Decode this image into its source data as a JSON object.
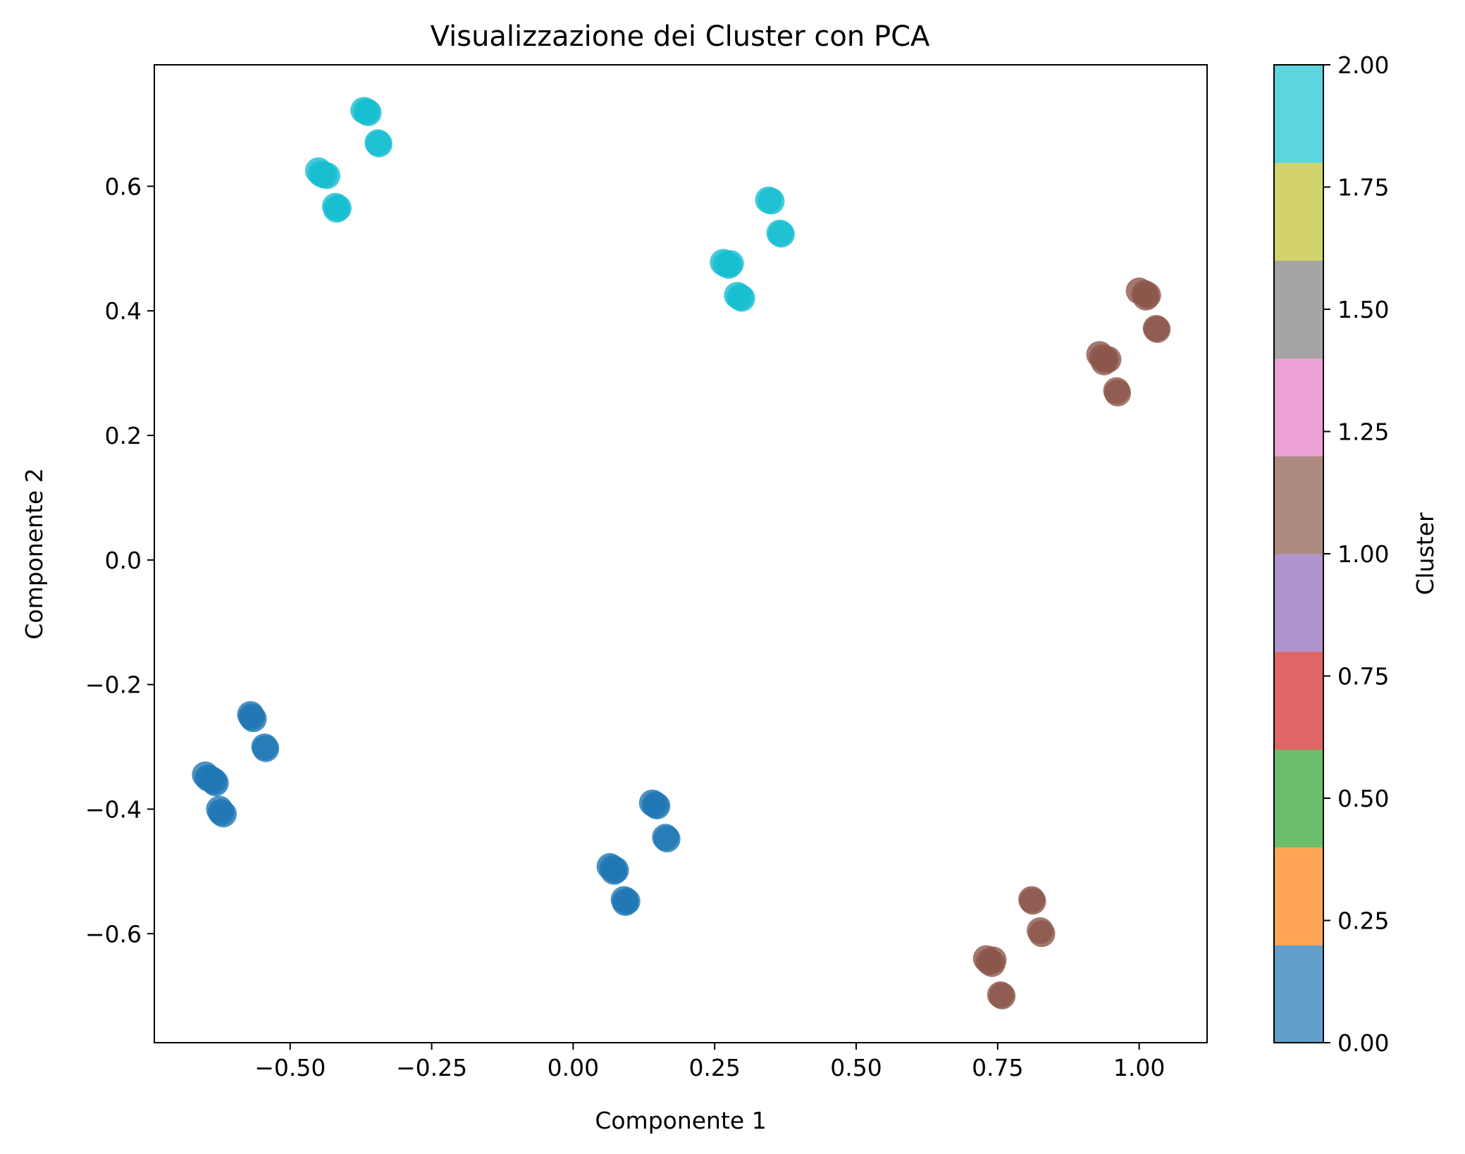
{
  "chart_data": {
    "type": "scatter",
    "title": "Visualizzazione dei Cluster con PCA",
    "xlabel": "Componente 1",
    "ylabel": "Componente 2",
    "xlim": [
      -0.74,
      1.12
    ],
    "ylim": [
      -0.775,
      0.795
    ],
    "xticks": [
      -0.5,
      -0.25,
      0.0,
      0.25,
      0.5,
      0.75,
      1.0
    ],
    "xtick_labels": [
      "−0.50",
      "−0.25",
      "0.00",
      "0.25",
      "0.50",
      "0.75",
      "1.00"
    ],
    "yticks": [
      -0.6,
      -0.4,
      -0.2,
      0.0,
      0.2,
      0.4,
      0.6
    ],
    "ytick_labels": [
      "−0.6",
      "−0.4",
      "−0.2",
      "0.0",
      "0.2",
      "0.4",
      "0.6"
    ],
    "grid": false,
    "series": [
      {
        "cluster": 0,
        "color": "#1f77b4",
        "points": [
          [
            -0.65,
            -0.345
          ],
          [
            -0.645,
            -0.35
          ],
          [
            -0.64,
            -0.352
          ],
          [
            -0.635,
            -0.355
          ],
          [
            -0.632,
            -0.358
          ],
          [
            -0.625,
            -0.4
          ],
          [
            -0.622,
            -0.405
          ],
          [
            -0.618,
            -0.408
          ],
          [
            -0.57,
            -0.248
          ],
          [
            -0.568,
            -0.252
          ],
          [
            -0.565,
            -0.255
          ],
          [
            -0.545,
            -0.3
          ],
          [
            -0.543,
            -0.303
          ],
          [
            0.065,
            -0.492
          ],
          [
            0.07,
            -0.495
          ],
          [
            0.075,
            -0.498
          ],
          [
            0.072,
            -0.5
          ],
          [
            0.09,
            -0.545
          ],
          [
            0.095,
            -0.548
          ],
          [
            0.092,
            -0.55
          ],
          [
            0.14,
            -0.39
          ],
          [
            0.145,
            -0.393
          ],
          [
            0.148,
            -0.395
          ],
          [
            0.163,
            -0.445
          ],
          [
            0.166,
            -0.448
          ]
        ]
      },
      {
        "cluster": 1,
        "color": "#8c564b",
        "points": [
          [
            1.0,
            0.432
          ],
          [
            1.01,
            0.428
          ],
          [
            1.015,
            0.425
          ],
          [
            1.012,
            0.422
          ],
          [
            1.03,
            0.372
          ],
          [
            1.032,
            0.37
          ],
          [
            0.93,
            0.33
          ],
          [
            0.935,
            0.325
          ],
          [
            0.94,
            0.322
          ],
          [
            0.945,
            0.322
          ],
          [
            0.938,
            0.318
          ],
          [
            0.96,
            0.272
          ],
          [
            0.962,
            0.268
          ],
          [
            0.81,
            -0.545
          ],
          [
            0.812,
            -0.548
          ],
          [
            0.825,
            -0.595
          ],
          [
            0.828,
            -0.6
          ],
          [
            0.73,
            -0.64
          ],
          [
            0.735,
            -0.645
          ],
          [
            0.74,
            -0.648
          ],
          [
            0.742,
            -0.642
          ],
          [
            0.755,
            -0.698
          ],
          [
            0.758,
            -0.7
          ]
        ]
      },
      {
        "cluster": 2,
        "color": "#17becf",
        "points": [
          [
            -0.37,
            0.722
          ],
          [
            -0.365,
            0.72
          ],
          [
            -0.362,
            0.718
          ],
          [
            -0.345,
            0.67
          ],
          [
            -0.343,
            0.668
          ],
          [
            -0.45,
            0.625
          ],
          [
            -0.445,
            0.62
          ],
          [
            -0.44,
            0.618
          ],
          [
            -0.435,
            0.617
          ],
          [
            -0.42,
            0.568
          ],
          [
            -0.415,
            0.565
          ],
          [
            -0.418,
            0.563
          ],
          [
            0.345,
            0.578
          ],
          [
            0.35,
            0.576
          ],
          [
            0.365,
            0.525
          ],
          [
            0.368,
            0.523
          ],
          [
            0.265,
            0.478
          ],
          [
            0.27,
            0.475
          ],
          [
            0.275,
            0.473
          ],
          [
            0.278,
            0.476
          ],
          [
            0.29,
            0.425
          ],
          [
            0.295,
            0.422
          ],
          [
            0.298,
            0.42
          ]
        ]
      }
    ],
    "colorbar": {
      "label": "Cluster",
      "range": [
        0.0,
        2.0
      ],
      "ticks": [
        0.0,
        0.25,
        0.5,
        0.75,
        1.0,
        1.25,
        1.5,
        1.75,
        2.0
      ],
      "tick_labels": [
        "0.00",
        "0.25",
        "0.50",
        "0.75",
        "1.00",
        "1.25",
        "1.50",
        "1.75",
        "2.00"
      ],
      "colors": [
        "#62a0cb",
        "#ffa756",
        "#6cbd6c",
        "#e06666",
        "#b094cd",
        "#ad8a80",
        "#eba1d5",
        "#a5a5a5",
        "#d3d36b",
        "#5ed4df"
      ]
    }
  }
}
